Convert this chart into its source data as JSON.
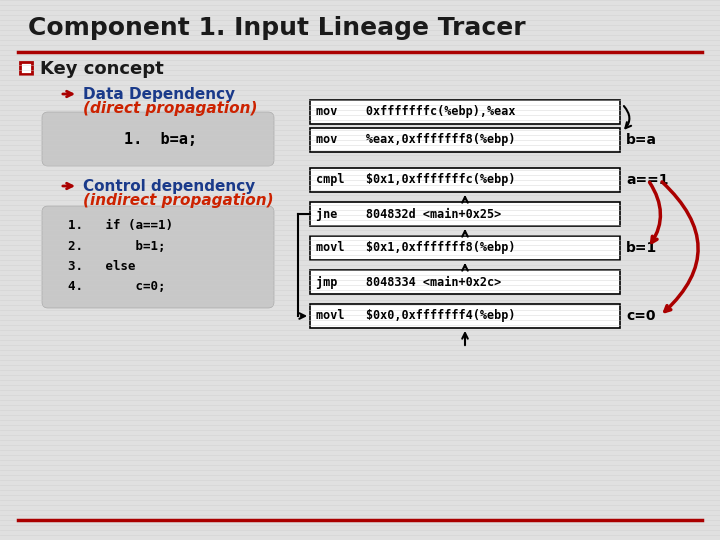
{
  "title": "Component 1. Input Lineage Tracer",
  "title_color": "#1a1a1a",
  "title_fontsize": 18,
  "bg_color": "#d8d8d8",
  "slide_bg": "#e0e0e0",
  "red_line_color": "#aa0000",
  "bullet_color": "#aa0000",
  "arrow_color": "#aa0000",
  "section1_label": "Key concept",
  "section1_color": "#1a1a1a",
  "arrow1_text": "Data Dependency",
  "arrow1_sub": "(direct propagation)",
  "arrow2_text": "Control dependency",
  "arrow2_sub": "(indirect propagation)",
  "text_blue": "#1a3a8a",
  "text_red": "#cc2200",
  "box_bg": "#c8c8c8",
  "code_box1": "1.  b=a;",
  "code_box2_lines": [
    "1.   if (a==1)",
    "2.       b=1;",
    "3.   else",
    "4.       c=0;"
  ],
  "instr_box1_line1": "mov    0xfffffffc(%ebp),%eax",
  "instr_box1_line2": "mov    %eax,0xfffffff8(%ebp)",
  "instr_box2_line1": "cmpl   $0x1,0xfffffffc(%ebp)",
  "instr_box3_line1": "jne    804832d <main+0x25>",
  "instr_box4_line1": "movl   $0x1,0xfffffff8(%ebp)",
  "instr_box5_line1": "jmp    8048334 <main+0x2c>",
  "instr_box6_line1": "movl   $0x0,0xfffffff4(%ebp)",
  "label_ba": "b=a",
  "label_a1": "a==1",
  "label_b1": "b=1",
  "label_c0": "c=0"
}
